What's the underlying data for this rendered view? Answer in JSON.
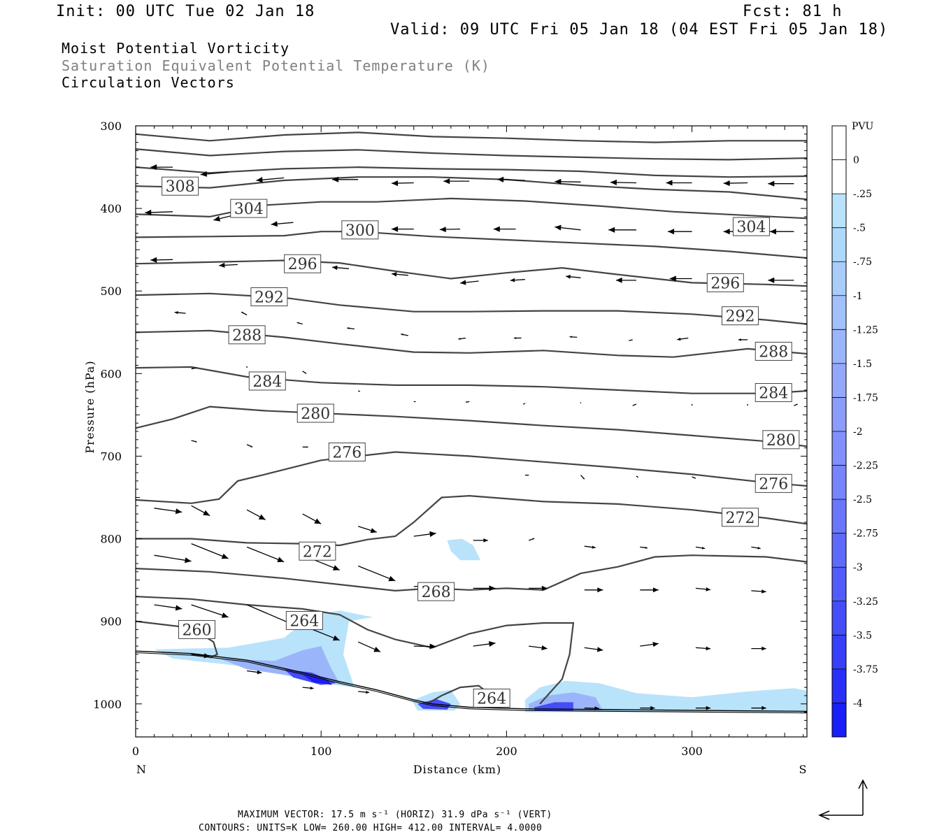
{
  "header": {
    "init": "Init: 00 UTC Tue 02 Jan 18",
    "fcst": "Fcst:   81 h",
    "valid": "Valid: 09 UTC Fri 05 Jan 18 (04 EST Fri 05 Jan 18)"
  },
  "titles": {
    "line1": "Moist Potential Vorticity",
    "line2": "Saturation Equivalent Potential Temperature (K)",
    "line3": "Circulation Vectors"
  },
  "footer": {
    "line1": "MAXIMUM VECTOR:  17.5 m s⁻¹ (HORIZ)          31.9 dPa s⁻¹ (VERT)",
    "line2": "CONTOURS:  UNITS=K  LOW=   260.00       HIGH=  412.00       INTERVAL=    4.0000"
  },
  "chart_data": {
    "type": "cross-section",
    "xlabel": "Distance (km)",
    "ylabel": "Pressure (hPa)",
    "x_start_label": "N",
    "x_end_label": "S",
    "xlim": [
      0,
      362
    ],
    "ylim": [
      1040,
      300
    ],
    "xticks": [
      "0",
      "100",
      "200",
      "300"
    ],
    "yticks": [
      "300",
      "400",
      "500",
      "600",
      "700",
      "800",
      "900",
      "1000"
    ],
    "colorbar": {
      "title": "PVU",
      "labels": [
        "0",
        "-.25",
        "-.5",
        "-.75",
        "-1",
        "-1.25",
        "-1.5",
        "-1.75",
        "-2",
        "-2.25",
        "-2.5",
        "-2.75",
        "-3",
        "-3.25",
        "-3.5",
        "-3.75",
        "-4"
      ],
      "colors": [
        "#ffffff",
        "#ffffff",
        "#b9e3fb",
        "#aed9fb",
        "#a8cdfb",
        "#a2c1fb",
        "#9bb5fb",
        "#94a8fb",
        "#8c9cfb",
        "#8290fb",
        "#7784fb",
        "#6b77fb",
        "#5f6afa",
        "#525cfa",
        "#454df9",
        "#383ff9",
        "#2a30f8",
        "#1a1ef7"
      ]
    },
    "contour_labels": [
      {
        "text": "308",
        "x": 24,
        "p": 373
      },
      {
        "text": "304",
        "x": 61,
        "p": 400
      },
      {
        "text": "300",
        "x": 121,
        "p": 426
      },
      {
        "text": "304",
        "x": 332,
        "p": 422
      },
      {
        "text": "296",
        "x": 90,
        "p": 467
      },
      {
        "text": "296",
        "x": 318,
        "p": 490
      },
      {
        "text": "292",
        "x": 72,
        "p": 507
      },
      {
        "text": "292",
        "x": 326,
        "p": 530
      },
      {
        "text": "288",
        "x": 60,
        "p": 553
      },
      {
        "text": "288",
        "x": 344,
        "p": 573
      },
      {
        "text": "284",
        "x": 71,
        "p": 609
      },
      {
        "text": "284",
        "x": 344,
        "p": 623
      },
      {
        "text": "280",
        "x": 97,
        "p": 648
      },
      {
        "text": "280",
        "x": 348,
        "p": 680
      },
      {
        "text": "276",
        "x": 114,
        "p": 695
      },
      {
        "text": "276",
        "x": 344,
        "p": 733
      },
      {
        "text": "272",
        "x": 98,
        "p": 815
      },
      {
        "text": "272",
        "x": 326,
        "p": 774
      },
      {
        "text": "268",
        "x": 162,
        "p": 864
      },
      {
        "text": "264",
        "x": 91,
        "p": 899
      },
      {
        "text": "264",
        "x": 192,
        "p": 993
      },
      {
        "text": "260",
        "x": 33,
        "p": 910
      }
    ],
    "contour_levels": [
      308,
      304,
      300,
      296,
      292,
      288,
      284,
      280,
      276,
      272,
      268,
      264,
      260
    ]
  }
}
